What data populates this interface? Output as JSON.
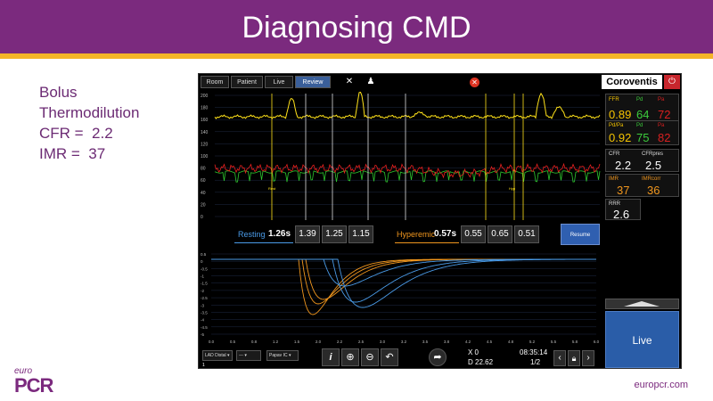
{
  "slide": {
    "title": "Diagnosing CMD",
    "left_lines": [
      "Bolus",
      "Thermodilution",
      "",
      "CFR =  2.2",
      "IMR =  37"
    ],
    "logo_small": "euro",
    "logo_big": "PCR",
    "website": "europcr.com"
  },
  "device": {
    "tabs": [
      "Room",
      "Patient",
      "Live",
      "Review"
    ],
    "active_tab": "Review",
    "brand": "Coroventis",
    "icons": {
      "tools": "tools-icon",
      "person": "person-icon",
      "close": "close-icon",
      "power": "power-icon"
    },
    "top_axis_ticks": [
      "200",
      "180",
      "160",
      "140",
      "120",
      "100",
      "80",
      "60",
      "40",
      "20",
      "0"
    ],
    "markers": [
      "Rest",
      "Hyp"
    ],
    "resting": {
      "label": "Resting",
      "main": "1.26s",
      "values": [
        "1.39",
        "1.25",
        "1.15"
      ]
    },
    "hyperemic": {
      "label": "Hyperemic",
      "main": "0.57s",
      "values": [
        "0.55",
        "0.65",
        "0.51"
      ]
    },
    "resume_label": "Resume",
    "bottom_y_ticks": [
      "0.5",
      "0",
      "-0.5",
      "-1",
      "-1.5",
      "-2",
      "-2.5",
      "-3",
      "-3.5",
      "-4",
      "-4.5",
      "-5"
    ],
    "bottom_x_ticks": [
      "0.0",
      "0.5",
      "0.8",
      "1.2",
      "1.5",
      "2.0",
      "2.2",
      "2.5",
      "3.0",
      "3.2",
      "3.5",
      "3.8",
      "4.2",
      "4.5",
      "4.8",
      "5.2",
      "5.5",
      "5.8",
      "6.0"
    ],
    "panels": {
      "ffr": {
        "labels": [
          "FFR",
          "Pd",
          "Pa"
        ],
        "values": [
          "0.89",
          "64",
          "72"
        ]
      },
      "pdpa": {
        "labels": [
          "Pd/Pa",
          "Pd",
          "Pa"
        ],
        "values": [
          "0.92",
          "75",
          "82"
        ]
      },
      "cfr": {
        "labels": [
          "CFR",
          "CFRpres"
        ],
        "values": [
          "2.2",
          "2.5"
        ]
      },
      "imr": {
        "labels": [
          "IMR",
          "IMRcorr"
        ],
        "values": [
          "37",
          "36"
        ]
      },
      "rrr": {
        "labels": [
          "RRR"
        ],
        "values": [
          "2.6"
        ]
      }
    },
    "live_label": "Live",
    "bottom": {
      "dropdown1": "LAD Distal",
      "dropdown2": "---",
      "dropdown3": "Papav IC",
      "page_number": "1",
      "x_readout": "X 0",
      "d_readout": "D 22.62",
      "time": "08:35:14",
      "page": "1/2"
    },
    "colors": {
      "pa_trace": "#ffe21a",
      "pd_trace": "#e8201e",
      "ecg_trace": "#2ec82e",
      "rest_curves": "#4a9be8",
      "hyp_curves": "#f0961e",
      "ffr_label": "#f5c400",
      "pd_label": "#3ccc3c",
      "pa_label": "#d82020",
      "accent_blue": "#2a5da8"
    }
  }
}
